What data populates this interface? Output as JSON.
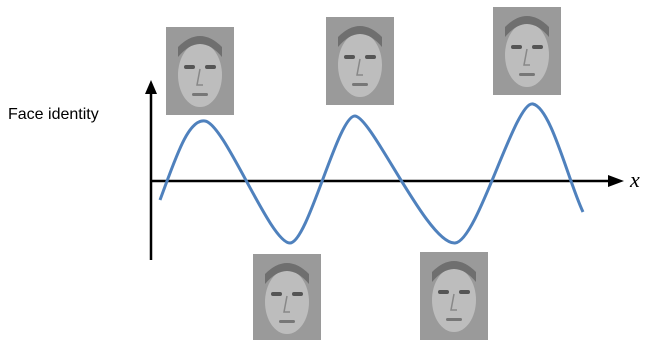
{
  "axes": {
    "y_label": "Face identity",
    "x_label": "x"
  }
}
